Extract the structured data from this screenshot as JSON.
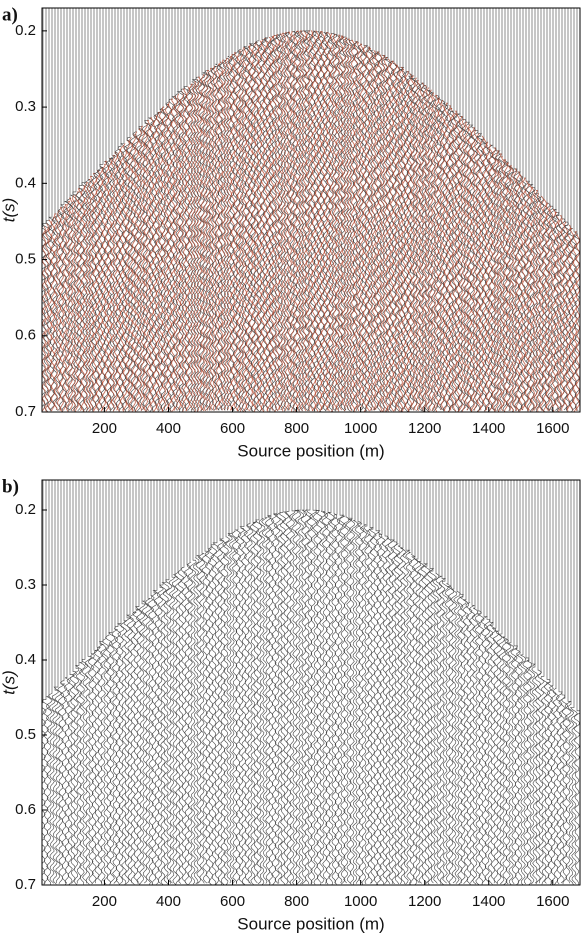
{
  "chart_data": [
    {
      "type": "seismic-wiggle",
      "title": "a)",
      "xlabel": "Source position (m)",
      "ylabel": "t(s)",
      "xlim": [
        5,
        1685
      ],
      "xticks": [
        200,
        400,
        600,
        800,
        1000,
        1200,
        1400,
        1600
      ],
      "ylim": [
        0.17,
        0.7
      ],
      "yticks": [
        0.2,
        0.3,
        0.4,
        0.5,
        0.6,
        0.7
      ],
      "y_inverted": true,
      "color": "#b4442a"
    },
    {
      "type": "seismic-wiggle",
      "title": "b)",
      "xlabel": "Source position (m)",
      "ylabel": "t(s)",
      "xlim": [
        5,
        1685
      ],
      "xticks": [
        200,
        400,
        600,
        800,
        1000,
        1200,
        1400,
        1600
      ],
      "ylim": [
        0.16,
        0.7
      ],
      "yticks": [
        0.2,
        0.3,
        0.4,
        0.5,
        0.6,
        0.7
      ],
      "y_inverted": true,
      "color": "#222222"
    }
  ]
}
